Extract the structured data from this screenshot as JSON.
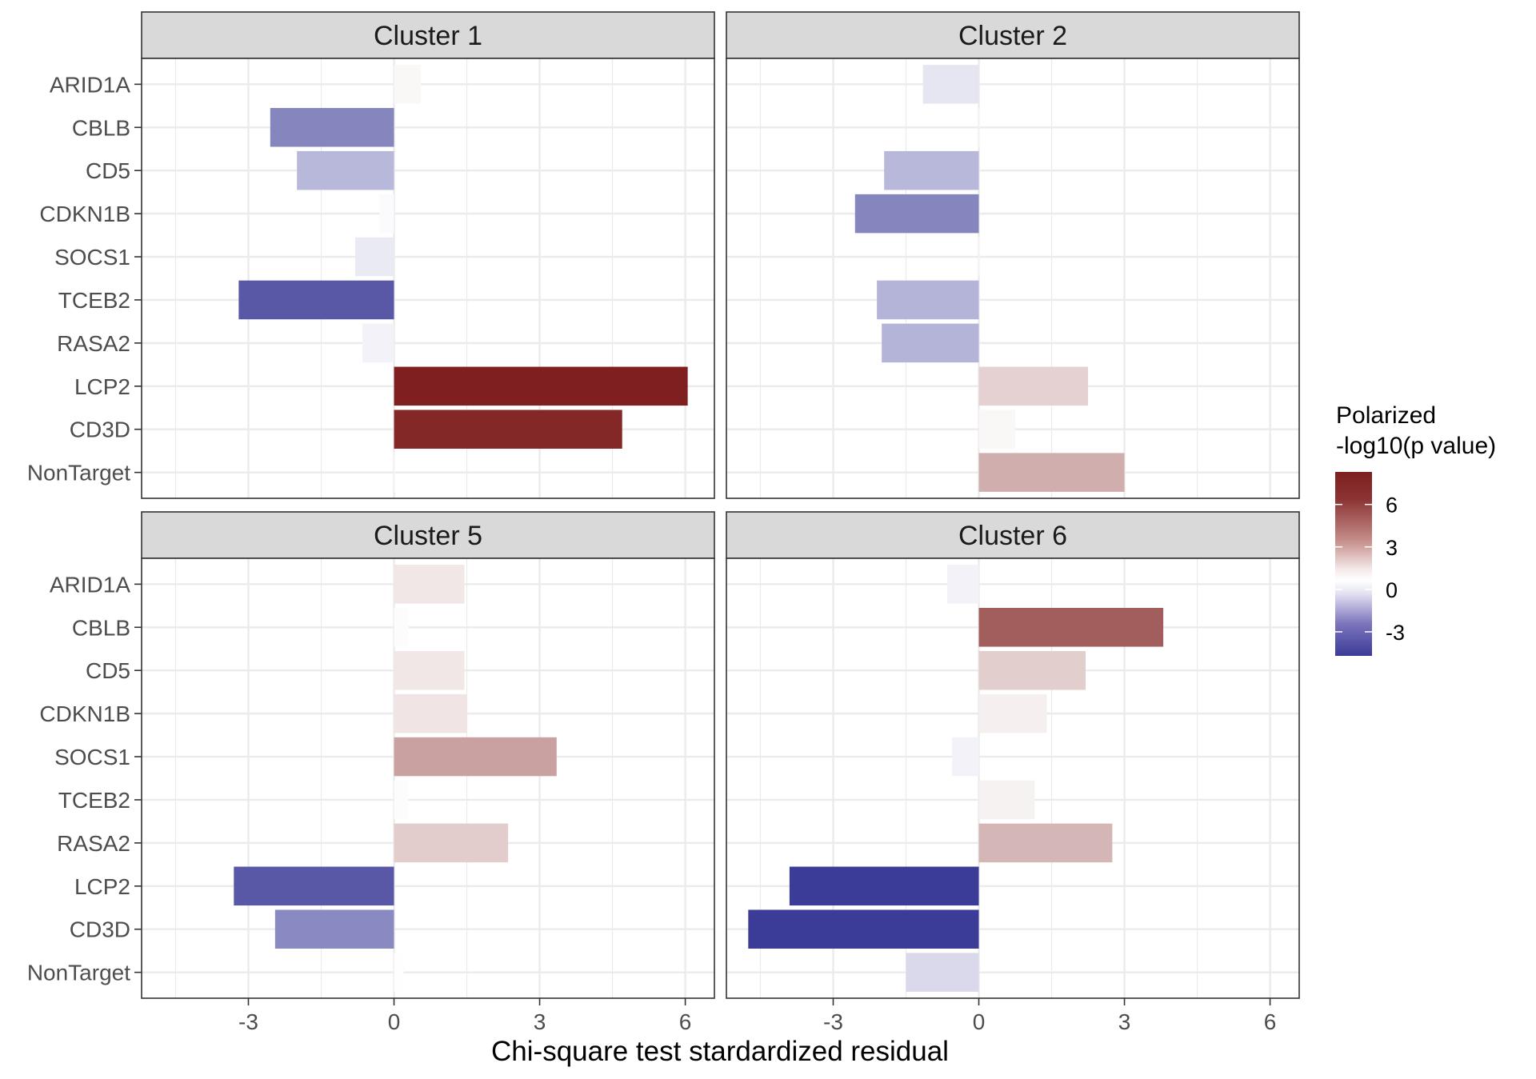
{
  "chart_data": {
    "type": "bar",
    "orientation": "horizontal",
    "xlabel": "Chi-square test stardardized residual",
    "x_ticks": [
      -3,
      0,
      3,
      6
    ],
    "xlim": [
      -5.2,
      6.6
    ],
    "grid": true,
    "categories": [
      "ARID1A",
      "CBLB",
      "CD5",
      "CDKN1B",
      "SOCS1",
      "TCEB2",
      "RASA2",
      "LCP2",
      "CD3D",
      "NonTarget"
    ],
    "legend": {
      "title_line1": "Polarized",
      "title_line2": "-log10(p value)",
      "position": "right",
      "ticks": [
        6,
        3,
        0,
        -3
      ],
      "range": [
        -4.7,
        8.3
      ],
      "colors": {
        "low": "#3B3B98",
        "mid": "#FFFFFF",
        "high": "#7F1F1F"
      }
    },
    "panels": [
      {
        "title": "Cluster 1",
        "values": [
          0.55,
          -2.55,
          -2.0,
          -0.3,
          -0.8,
          -3.2,
          -0.65,
          6.05,
          4.7,
          0.0
        ],
        "color_values": [
          0.3,
          -2.9,
          -1.7,
          -0.1,
          -0.5,
          -4.0,
          -0.3,
          8.3,
          8.0,
          0.0
        ]
      },
      {
        "title": "Cluster 2",
        "values": [
          -1.15,
          0.0,
          -1.95,
          -2.55,
          0.0,
          -2.1,
          -2.0,
          2.25,
          0.75,
          3.0
        ],
        "color_values": [
          -0.6,
          0.0,
          -1.7,
          -2.9,
          0.0,
          -1.8,
          -1.8,
          1.7,
          0.3,
          3.0
        ]
      },
      {
        "title": "Cluster 5",
        "values": [
          1.45,
          0.3,
          1.45,
          1.5,
          3.35,
          0.3,
          2.35,
          -3.3,
          -2.45,
          0.2
        ],
        "color_values": [
          0.9,
          0.1,
          0.9,
          1.0,
          3.5,
          0.1,
          1.9,
          -4.0,
          -2.8,
          0.05
        ]
      },
      {
        "title": "Cluster 6",
        "values": [
          -0.65,
          3.8,
          2.2,
          1.4,
          -0.55,
          1.15,
          2.75,
          -3.9,
          -4.75,
          -1.5
        ],
        "color_values": [
          -0.3,
          6.0,
          1.8,
          0.6,
          -0.3,
          0.5,
          2.7,
          -4.7,
          -4.7,
          -0.9
        ]
      }
    ]
  }
}
